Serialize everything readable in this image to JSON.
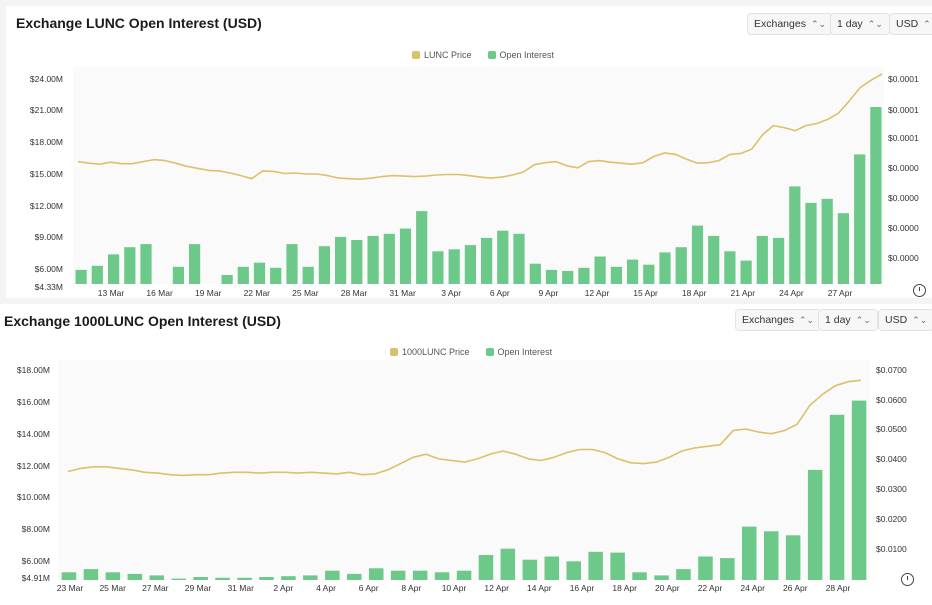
{
  "panels": [
    {
      "title": "Exchange LUNC Open Interest (USD)",
      "controls": {
        "exchanges": "Exchanges",
        "interval": "1 day",
        "currency": "USD"
      },
      "legend": {
        "price": "LUNC Price",
        "oi": "Open Interest"
      }
    },
    {
      "title": "Exchange 1000LUNC Open Interest (USD)",
      "controls": {
        "exchanges": "Exchanges",
        "interval": "1 day",
        "currency": "USD"
      },
      "legend": {
        "price": "1000LUNC Price",
        "oi": "Open Interest"
      }
    }
  ],
  "colors": {
    "bar": "#6cc98a",
    "line": "#dcc06a"
  },
  "chart_data": [
    {
      "type": "bar",
      "title": "Exchange LUNC Open Interest (USD)",
      "x_tick_labels": [
        "13 Mar",
        "16 Mar",
        "19 Mar",
        "22 Mar",
        "25 Mar",
        "28 Mar",
        "31 Mar",
        "3 Apr",
        "6 Apr",
        "9 Apr",
        "12 Apr",
        "15 Apr",
        "18 Apr",
        "21 Apr",
        "24 Apr",
        "27 Apr"
      ],
      "y_left_ticks": [
        "$24.00M",
        "$21.00M",
        "$18.00M",
        "$15.00M",
        "$12.00M",
        "$9.00M",
        "$6.00M",
        "$4.33M"
      ],
      "y_right_ticks": [
        "$0.0001",
        "$0.0001",
        "$0.0001",
        "$0.0000",
        "$0.0000",
        "$0.0000",
        "$0.0000"
      ],
      "ylim": [
        4.33,
        24.8
      ],
      "series": [
        {
          "name": "Open Interest",
          "values": [
            5.7,
            6.1,
            7.2,
            7.9,
            8.2,
            4.33,
            6.0,
            8.2,
            4.33,
            5.2,
            6.0,
            6.4,
            5.9,
            8.2,
            6.0,
            8.0,
            8.9,
            8.6,
            9.0,
            9.2,
            9.7,
            11.4,
            7.5,
            7.7,
            8.1,
            8.8,
            9.5,
            9.2,
            6.3,
            5.7,
            5.6,
            5.9,
            7.0,
            6.0,
            6.7,
            6.2,
            7.4,
            7.9,
            10.0,
            9.0,
            7.5,
            6.6,
            9.0,
            8.8,
            13.8,
            12.2,
            12.6,
            11.2,
            16.9,
            21.5
          ]
        },
        {
          "name": "LUNC Price",
          "values": [
            16.2,
            16.05,
            15.95,
            16.15,
            16.0,
            16.0,
            16.2,
            16.4,
            16.3,
            16.05,
            15.75,
            15.55,
            15.35,
            15.3,
            15.1,
            14.85,
            14.55,
            15.3,
            15.25,
            15.05,
            15.1,
            15.0,
            15.0,
            14.85,
            14.6,
            14.55,
            14.5,
            14.6,
            14.75,
            14.85,
            14.8,
            14.75,
            14.8,
            14.9,
            14.95,
            14.95,
            14.85,
            14.7,
            14.6,
            14.7,
            14.9,
            15.2,
            15.9,
            16.1,
            16.2,
            15.8,
            15.6,
            16.2,
            16.3,
            16.15,
            16.05,
            15.95,
            16.1,
            16.7,
            17.05,
            16.9,
            16.45,
            16.05,
            16.1,
            16.3,
            16.9,
            17.0,
            17.4,
            18.8,
            19.7,
            19.5,
            19.2,
            19.7,
            19.9,
            20.3,
            20.9,
            22.1,
            23.4,
            24.1,
            24.7
          ]
        }
      ]
    },
    {
      "type": "bar",
      "title": "Exchange 1000LUNC Open Interest (USD)",
      "x_tick_labels": [
        "23 Mar",
        "25 Mar",
        "27 Mar",
        "29 Mar",
        "31 Mar",
        "2 Apr",
        "4 Apr",
        "6 Apr",
        "8 Apr",
        "10 Apr",
        "12 Apr",
        "14 Apr",
        "16 Apr",
        "18 Apr",
        "20 Apr",
        "22 Apr",
        "24 Apr",
        "26 Apr",
        "28 Apr"
      ],
      "y_left_ticks": [
        "$18.00M",
        "$16.00M",
        "$14.00M",
        "$12.00M",
        "$10.00M",
        "$8.00M",
        "$6.00M",
        "$4.91M"
      ],
      "y_right_ticks": [
        "$0.0700",
        "$0.0600",
        "$0.0500",
        "$0.0400",
        "$0.0300",
        "$0.0200",
        "$0.0100"
      ],
      "ylim": [
        4.91,
        18.5
      ],
      "series": [
        {
          "name": "Open Interest",
          "values": [
            5.4,
            5.6,
            5.4,
            5.3,
            5.2,
            5.0,
            5.1,
            5.05,
            5.05,
            5.1,
            5.15,
            5.2,
            5.5,
            5.3,
            5.65,
            5.5,
            5.5,
            5.4,
            5.5,
            6.5,
            6.9,
            6.2,
            6.4,
            6.1,
            6.7,
            6.65,
            5.4,
            5.2,
            5.6,
            6.4,
            6.3,
            8.3,
            8.0,
            7.75,
            11.9,
            15.4,
            16.3
          ]
        },
        {
          "name": "1000LUNC Price",
          "values": [
            11.8,
            12.0,
            12.1,
            12.1,
            12.0,
            11.9,
            11.75,
            11.7,
            11.6,
            11.55,
            11.6,
            11.6,
            11.7,
            11.75,
            11.75,
            11.7,
            11.75,
            11.75,
            11.7,
            11.75,
            11.7,
            11.65,
            11.75,
            11.6,
            11.65,
            11.9,
            12.3,
            12.7,
            12.9,
            12.6,
            12.5,
            12.4,
            12.6,
            12.9,
            13.1,
            12.9,
            12.6,
            12.5,
            12.7,
            13.0,
            13.2,
            13.2,
            13.0,
            12.6,
            12.35,
            12.3,
            12.4,
            12.7,
            13.1,
            13.3,
            13.4,
            13.5,
            14.4,
            14.5,
            14.3,
            14.2,
            14.4,
            14.8,
            16.0,
            16.7,
            17.25,
            17.5,
            17.6
          ]
        }
      ]
    }
  ]
}
